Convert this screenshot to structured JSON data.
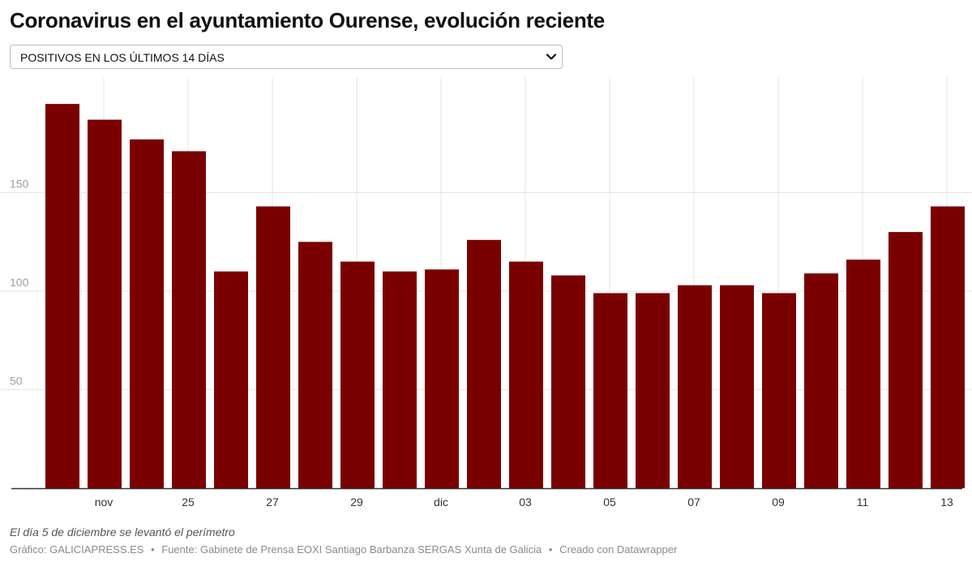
{
  "title": "Coronavirus en el ayuntamiento Ourense, evolución reciente",
  "dropdown": {
    "selected": "POSITIVOS EN LOS ÚLTIMOS 14 DÍAS",
    "icon": "chevron-down-icon"
  },
  "note": "El día 5 de diciembre se levantó el perímetro",
  "footer": {
    "grafico_label": "Gráfico: GALICIAPRESS.ES",
    "fuente_label": "Fuente: Gabinete de Prensa EOXI Santiago Barbanza SERGAS Xunta de Galicia",
    "creado_label": "Creado con Datawrapper",
    "separator": "•"
  },
  "colors": {
    "bar": "#7a0000",
    "grid": "#e6e6e6",
    "axis": "#333333"
  },
  "chart_data": {
    "type": "bar",
    "title": "",
    "xlabel": "",
    "ylabel": "",
    "ylim": [
      0,
      205
    ],
    "yticks": [
      50,
      100,
      150
    ],
    "grid": true,
    "categories": [
      "",
      "nov",
      "",
      "25",
      "",
      "27",
      "",
      "29",
      "",
      "dic",
      "",
      "03",
      "",
      "05",
      "",
      "07",
      "",
      "09",
      "",
      "11",
      "",
      "13"
    ],
    "values": [
      195,
      187,
      177,
      171,
      110,
      143,
      125,
      115,
      110,
      111,
      126,
      115,
      108,
      99,
      99,
      103,
      103,
      99,
      109,
      116,
      130,
      143
    ]
  }
}
